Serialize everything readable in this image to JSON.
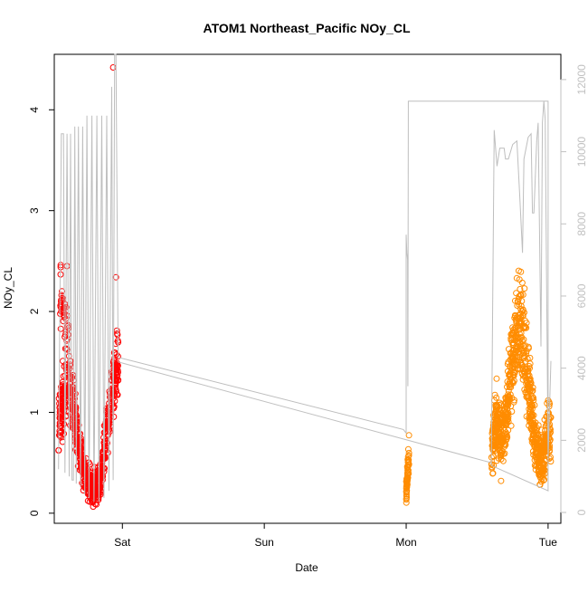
{
  "chart_data": {
    "type": "scatter",
    "title": "ATOM1 Northeast_Pacific NOy_CL",
    "xlabel": "Date",
    "ylabel": "NOy_CL",
    "x_axis": {
      "ticks": [
        {
          "label": "Sat",
          "value": 1.0
        },
        {
          "label": "Sun",
          "value": 2.0
        },
        {
          "label": "Mon",
          "value": 3.0
        },
        {
          "label": "Tue",
          "value": 4.0
        }
      ],
      "range_days": [
        0.52,
        4.09
      ]
    },
    "y_left": {
      "range": [
        -0.1,
        4.55
      ],
      "ticks": [
        0,
        1,
        2,
        3,
        4
      ]
    },
    "y_right": {
      "range": [
        -300,
        12700
      ],
      "ticks": [
        0,
        2000,
        4000,
        6000,
        8000,
        10000,
        12000
      ],
      "color": "#c0c0c0"
    },
    "grid": false,
    "legend": "none",
    "series": [
      {
        "color": "#ff0000",
        "marker": "open-circle",
        "segments": [
          {
            "start": 0.55,
            "end": 0.97,
            "seed": 11,
            "count": 700,
            "profile": [
              [
                0.55,
                0.8
              ],
              [
                0.58,
                1.1
              ],
              [
                0.62,
                1.3
              ],
              [
                0.66,
                1.0
              ],
              [
                0.7,
                0.6
              ],
              [
                0.73,
                0.4
              ],
              [
                0.76,
                0.3
              ],
              [
                0.8,
                0.25
              ],
              [
                0.84,
                0.28
              ],
              [
                0.87,
                0.6
              ],
              [
                0.9,
                0.95
              ],
              [
                0.93,
                1.2
              ],
              [
                0.96,
                1.45
              ],
              [
                0.97,
                1.5
              ]
            ],
            "spread": 0.45
          },
          {
            "start": 0.56,
            "end": 0.62,
            "seed": 5,
            "count": 40,
            "profile": [
              [
                0.56,
                2.2
              ],
              [
                0.62,
                1.8
              ]
            ],
            "spread": 0.3
          }
        ],
        "outliers": [
          {
            "x": 0.935,
            "y": 4.42
          },
          {
            "x": 0.955,
            "y": 2.34
          },
          {
            "x": 0.565,
            "y": 2.46
          },
          {
            "x": 0.61,
            "y": 2.45
          }
        ]
      },
      {
        "color": "#ff8c00",
        "marker": "open-circle",
        "segments": [
          {
            "start": 3.0,
            "end": 3.02,
            "seed": 23,
            "count": 60,
            "profile": [
              [
                3.0,
                0.2
              ],
              [
                3.02,
                0.6
              ]
            ],
            "spread": 0.35
          },
          {
            "start": 3.6,
            "end": 4.02,
            "seed": 37,
            "count": 800,
            "profile": [
              [
                3.6,
                0.5
              ],
              [
                3.63,
                1.0
              ],
              [
                3.67,
                0.7
              ],
              [
                3.7,
                0.9
              ],
              [
                3.73,
                1.3
              ],
              [
                3.76,
                1.6
              ],
              [
                3.79,
                1.9
              ],
              [
                3.82,
                1.8
              ],
              [
                3.85,
                1.4
              ],
              [
                3.88,
                1.1
              ],
              [
                3.91,
                0.7
              ],
              [
                3.94,
                0.5
              ],
              [
                3.97,
                0.6
              ],
              [
                4.0,
                0.9
              ],
              [
                4.02,
                0.7
              ]
            ],
            "spread": 0.55
          }
        ],
        "outliers": []
      }
    ],
    "secondary_line": {
      "color": "#bebebe",
      "axis": "right",
      "points": [
        [
          0.55,
          1200
        ],
        [
          0.57,
          10500
        ],
        [
          0.585,
          10500
        ],
        [
          0.595,
          1100
        ],
        [
          0.61,
          10500
        ],
        [
          0.625,
          1000
        ],
        [
          0.635,
          10500
        ],
        [
          0.645,
          900
        ],
        [
          0.655,
          900
        ],
        [
          0.665,
          10700
        ],
        [
          0.675,
          800
        ],
        [
          0.69,
          10700
        ],
        [
          0.705,
          700
        ],
        [
          0.72,
          10700
        ],
        [
          0.735,
          500
        ],
        [
          0.75,
          11000
        ],
        [
          0.765,
          400
        ],
        [
          0.785,
          11000
        ],
        [
          0.8,
          300
        ],
        [
          0.82,
          11000
        ],
        [
          0.835,
          300
        ],
        [
          0.855,
          11000
        ],
        [
          0.87,
          400
        ],
        [
          0.89,
          11000
        ],
        [
          0.905,
          600
        ],
        [
          0.925,
          11800
        ],
        [
          0.935,
          900
        ],
        [
          0.945,
          12700
        ],
        [
          0.955,
          12700
        ],
        [
          0.97,
          4300
        ],
        [
          0.97,
          4300
        ],
        [
          2.98,
          2300
        ],
        [
          3.0,
          2200
        ],
        [
          3.0,
          7700
        ],
        [
          3.005,
          7200
        ],
        [
          3.01,
          7000
        ],
        [
          3.012,
          3500
        ],
        [
          3.015,
          11400
        ],
        [
          3.05,
          11400
        ],
        [
          4.0,
          11400
        ],
        [
          4.0,
          600
        ],
        [
          3.6,
          1300
        ],
        [
          3.62,
          10600
        ],
        [
          3.64,
          9600
        ],
        [
          3.66,
          10100
        ],
        [
          3.69,
          10100
        ],
        [
          3.7,
          9800
        ],
        [
          3.72,
          9800
        ],
        [
          3.75,
          10200
        ],
        [
          3.78,
          10300
        ],
        [
          3.8,
          8800
        ],
        [
          3.82,
          7200
        ],
        [
          3.83,
          9800
        ],
        [
          3.86,
          10400
        ],
        [
          3.88,
          10500
        ],
        [
          3.89,
          8300
        ],
        [
          3.9,
          8300
        ],
        [
          3.92,
          10300
        ],
        [
          3.93,
          10800
        ],
        [
          3.95,
          4600
        ],
        [
          3.96,
          10800
        ],
        [
          3.97,
          11400
        ],
        [
          3.98,
          10900
        ],
        [
          4.0,
          1500
        ],
        [
          4.02,
          4200
        ]
      ]
    },
    "trend_line": {
      "color": "#c0c0c0",
      "points": [
        [
          0.97,
          1.5
        ],
        [
          3.6,
          0.5
        ]
      ]
    }
  }
}
